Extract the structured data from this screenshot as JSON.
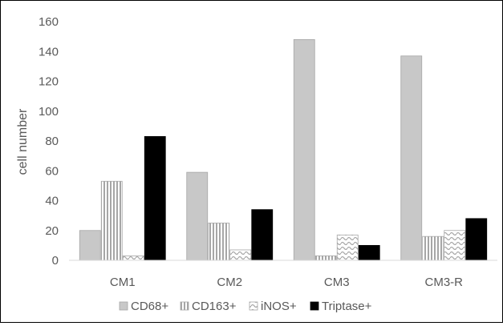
{
  "chart_data": {
    "type": "bar",
    "title": "",
    "xlabel": "",
    "ylabel": "cell number",
    "ylim": [
      0,
      160
    ],
    "yticks": [
      0,
      20,
      40,
      60,
      80,
      100,
      120,
      140,
      160
    ],
    "grid": false,
    "legend_position": "bottom",
    "categories": [
      "CM1",
      "CM2",
      "CM3",
      "CM3-R"
    ],
    "series": [
      {
        "name": "CD68+",
        "values": [
          20,
          59,
          148,
          137
        ],
        "color": "#c8c8c8",
        "pattern": "solid"
      },
      {
        "name": "CD163+",
        "values": [
          53,
          25,
          3,
          16
        ],
        "color": "#c8c8c8",
        "pattern": "vertical-stripes"
      },
      {
        "name": "iNOS+",
        "values": [
          3,
          7,
          17,
          20
        ],
        "color": "#d9d9d9",
        "pattern": "wave"
      },
      {
        "name": "Triptase+",
        "values": [
          83,
          34,
          10,
          28
        ],
        "color": "#000000",
        "pattern": "solid"
      }
    ]
  }
}
